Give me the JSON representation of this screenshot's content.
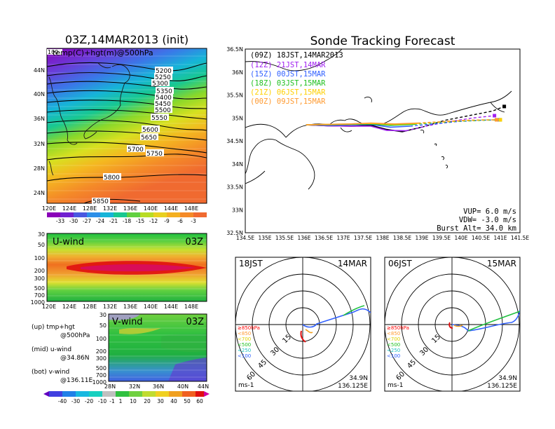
{
  "chart_data": [
    {
      "type": "heatmap",
      "title": "03Z,14MAR2013 (init)",
      "annotation": "temp(C)+hgt(m)@500hPa",
      "x_ticks": [
        "120E",
        "124E",
        "128E",
        "132E",
        "136E",
        "140E",
        "144E",
        "148E"
      ],
      "y_ticks": [
        "44N",
        "40N",
        "36N",
        "32N",
        "28N",
        "24N"
      ],
      "corner_label": "100",
      "colorbar_ticks": [
        "-33",
        "-30",
        "-27",
        "-24",
        "-21",
        "-18",
        "-15",
        "-12",
        "-9",
        "-6",
        "-3"
      ],
      "contour_labels": [
        "5200",
        "5250",
        "5300",
        "5350",
        "5400",
        "5450",
        "5500",
        "5550",
        "5600",
        "5650",
        "5700",
        "5750",
        "5800",
        "5850"
      ]
    },
    {
      "type": "heatmap",
      "title": "U-wind",
      "time_label": "03Z",
      "x_ticks": [
        "120E",
        "124E",
        "128E",
        "132E",
        "136E",
        "140E",
        "144E",
        "148E"
      ],
      "y_ticks": [
        "30",
        "50",
        "100",
        "200",
        "300",
        "500",
        "700",
        "1000"
      ]
    },
    {
      "type": "heatmap",
      "title": "V-wind",
      "time_label": "03Z",
      "x_ticks": [
        "28N",
        "32N",
        "36N",
        "40N",
        "44N"
      ],
      "y_ticks": [
        "30",
        "50",
        "100",
        "200",
        "300",
        "500",
        "700",
        "1000"
      ],
      "colorbar_ticks": [
        "-40",
        "-30",
        "-20",
        "-10",
        "-1",
        "1",
        "10",
        "20",
        "30",
        "40",
        "50",
        "60"
      ]
    },
    {
      "type": "line",
      "title": "Sonde Tracking Forecast",
      "x_ticks": [
        "134.5E",
        "135E",
        "135.5E",
        "136E",
        "136.5E",
        "137E",
        "137.5E",
        "138E",
        "138.5E",
        "139E",
        "139.5E",
        "140E",
        "140.5E",
        "141E",
        "141.5E"
      ],
      "y_ticks": [
        "36.5N",
        "36N",
        "35.5N",
        "35N",
        "34.5N",
        "34N",
        "33.5N",
        "33N",
        "32.5N"
      ],
      "xlim": [
        134.5,
        141.5
      ],
      "ylim": [
        32.5,
        36.5
      ],
      "legend": [
        "(09Z)  18JST,14MAR2013",
        "(12Z)  21JST,14MAR",
        "(15Z)  00JST,15MAR",
        "(18Z)  03JST,15MAR",
        "(21Z)  06JST,15MAR",
        "(00Z)  09JST,15MAR"
      ],
      "info": [
        "VUP=  6.0  m/s",
        "VDW= -3.0  m/s",
        "Burst Alt=  34.0  km"
      ],
      "series": [
        {
          "name": "(09Z)  18JST,14MAR2013",
          "color": "#000000",
          "x": [
            136.05,
            136.6,
            137.2,
            137.7,
            138.1,
            138.5,
            139.0,
            139.6,
            140.2,
            140.8,
            141.1
          ],
          "y": [
            34.85,
            34.83,
            34.82,
            34.84,
            34.75,
            34.7,
            34.8,
            34.95,
            35.05,
            35.15,
            35.25
          ]
        },
        {
          "name": "(12Z)  21JST,14MAR",
          "color": "#a020f0",
          "x": [
            136.05,
            136.6,
            137.2,
            137.7,
            138.1,
            138.6,
            139.1,
            139.7,
            140.3,
            140.85
          ],
          "y": [
            34.85,
            34.83,
            34.82,
            34.82,
            34.73,
            34.72,
            34.82,
            34.92,
            35.0,
            35.05
          ]
        },
        {
          "name": "(15Z)  00JST,15MAR",
          "color": "#3060ff",
          "x": [
            136.05,
            136.6,
            137.2,
            137.7,
            138.2,
            138.7,
            139.3,
            139.9,
            140.5,
            140.95
          ],
          "y": [
            34.85,
            34.84,
            34.85,
            34.86,
            34.8,
            34.82,
            34.87,
            34.92,
            34.95,
            34.96
          ]
        },
        {
          "name": "(18Z)  03JST,15MAR",
          "color": "#20c020",
          "x": [
            136.05,
            136.6,
            137.2,
            137.7,
            138.2,
            138.8,
            139.4,
            140.0,
            140.6,
            141.0
          ],
          "y": [
            34.85,
            34.85,
            34.86,
            34.87,
            34.84,
            34.86,
            34.9,
            34.93,
            34.95,
            34.96
          ]
        },
        {
          "name": "(21Z)  06JST,15MAR",
          "color": "#ffd000",
          "x": [
            136.05,
            136.6,
            137.2,
            137.7,
            138.3,
            138.9,
            139.5,
            140.1,
            140.7,
            141.0
          ],
          "y": [
            34.85,
            34.86,
            34.87,
            34.88,
            34.86,
            34.88,
            34.91,
            34.94,
            34.96,
            34.96
          ]
        },
        {
          "name": "(00Z)  09JST,15MAR",
          "color": "#ff9a30",
          "x": [
            136.05,
            136.6,
            137.2,
            137.7,
            138.3,
            138.9,
            139.5,
            140.1,
            140.6,
            140.9
          ],
          "y": [
            34.85,
            34.86,
            34.87,
            34.89,
            34.87,
            34.89,
            34.92,
            34.95,
            34.96,
            34.96
          ]
        }
      ]
    },
    {
      "type": "scatter",
      "title": "18JST",
      "date_label": "14MAR",
      "ring_labels": [
        "15",
        "30",
        "45",
        "60"
      ],
      "unit": "ms-1",
      "pressure_legend": [
        {
          "label": "≥850hPa",
          "color": "#ff0000"
        },
        {
          "label": "<850",
          "color": "#ff9a30"
        },
        {
          "label": "<700",
          "color": "#e0d000"
        },
        {
          "label": "<500",
          "color": "#20c020"
        },
        {
          "label": "<250",
          "color": "#20c0c0"
        },
        {
          "label": "<100",
          "color": "#3060ff"
        }
      ],
      "location": [
        "34.9N",
        "136.125E"
      ]
    },
    {
      "type": "scatter",
      "title": "06JST",
      "date_label": "15MAR",
      "ring_labels": [
        "15",
        "30",
        "45",
        "60"
      ],
      "unit": "ms-1",
      "pressure_legend": [
        {
          "label": "≥850hPa",
          "color": "#ff0000"
        },
        {
          "label": "<850",
          "color": "#ff9a30"
        },
        {
          "label": "<700",
          "color": "#e0d000"
        },
        {
          "label": "<500",
          "color": "#20c020"
        },
        {
          "label": "<250",
          "color": "#20c0c0"
        },
        {
          "label": "<100",
          "color": "#3060ff"
        }
      ],
      "location": [
        "34.9N",
        "136.125E"
      ]
    }
  ],
  "side_legend": [
    {
      "label": "(up) tmp+hgt",
      "sub": "@500hPa"
    },
    {
      "label": "(mid) u-wind",
      "sub": "@34.86N"
    },
    {
      "label": "(bot) v-wind",
      "sub": "@136.11E"
    }
  ]
}
